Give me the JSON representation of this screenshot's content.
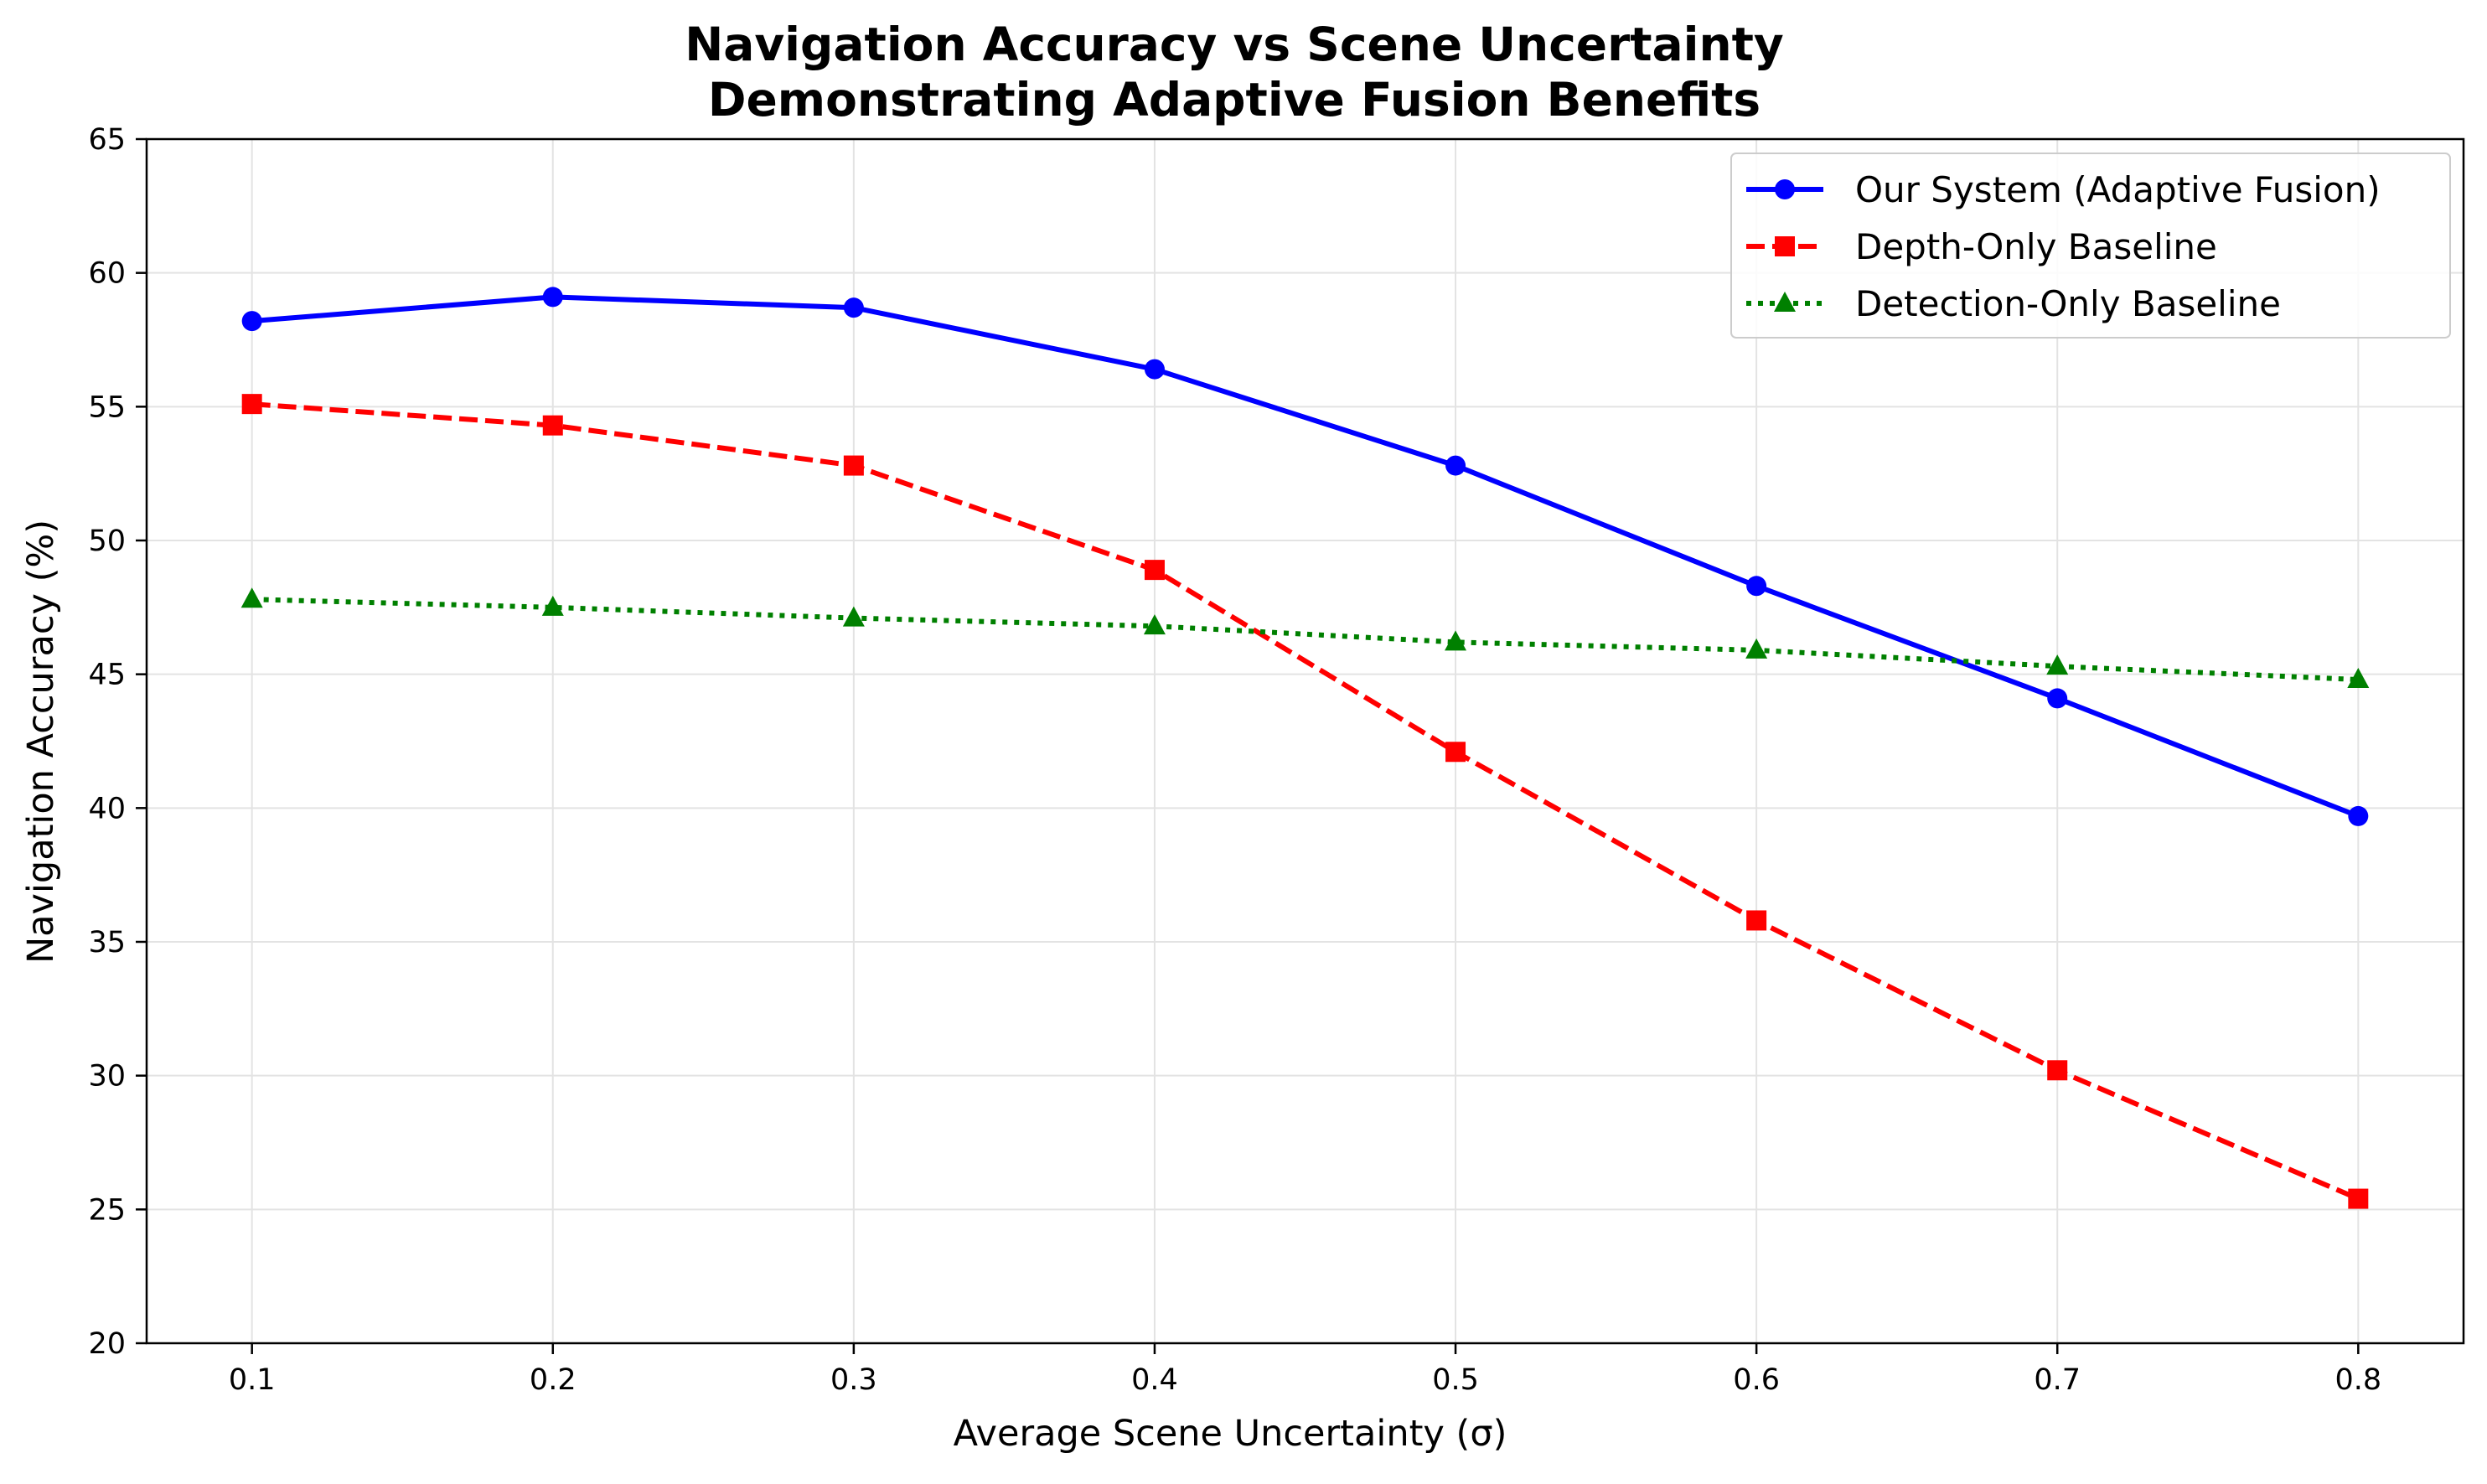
{
  "chart_data": {
    "type": "line",
    "title_line1": "Navigation Accuracy vs Scene Uncertainty",
    "title_line2": "Demonstrating Adaptive Fusion Benefits",
    "xlabel": "Average Scene Uncertainty (σ)",
    "ylabel": "Navigation Accuracy (%)",
    "x": [
      0.1,
      0.2,
      0.3,
      0.4,
      0.5,
      0.6,
      0.7,
      0.8
    ],
    "xticks": [
      "0.1",
      "0.2",
      "0.3",
      "0.4",
      "0.5",
      "0.6",
      "0.7",
      "0.8"
    ],
    "xlim": [
      0.065,
      0.835
    ],
    "ylim": [
      20,
      65
    ],
    "yticks": [
      20,
      25,
      30,
      35,
      40,
      45,
      50,
      55,
      60,
      65
    ],
    "grid": true,
    "legend_position": "top-right",
    "series": [
      {
        "name": "Our System (Adaptive Fusion)",
        "values": [
          58.2,
          59.1,
          58.7,
          56.4,
          52.8,
          48.3,
          44.1,
          39.7
        ],
        "color": "#0000ff",
        "line_style": "solid",
        "marker": "circle"
      },
      {
        "name": "Depth-Only Baseline",
        "values": [
          55.1,
          54.3,
          52.8,
          48.9,
          42.1,
          35.8,
          30.2,
          25.4
        ],
        "color": "#ff0000",
        "line_style": "dashed",
        "marker": "square"
      },
      {
        "name": "Detection-Only Baseline",
        "values": [
          47.8,
          47.5,
          47.1,
          46.8,
          46.2,
          45.9,
          45.3,
          44.8
        ],
        "color": "#008000",
        "line_style": "dotted",
        "marker": "triangle"
      }
    ]
  }
}
